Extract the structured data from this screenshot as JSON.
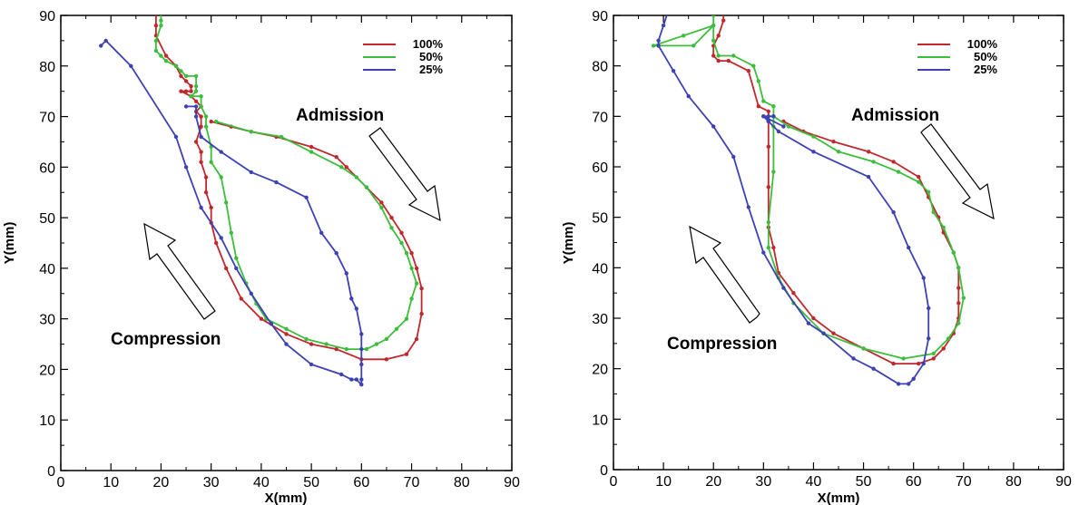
{
  "chart_data": [
    {
      "type": "line",
      "xlabel": "X(mm)",
      "ylabel": "Y(mm)",
      "xlim": [
        0,
        90
      ],
      "ylim": [
        0,
        90
      ],
      "xticks": [
        0,
        10,
        20,
        30,
        40,
        50,
        60,
        70,
        80,
        90
      ],
      "yticks": [
        0,
        10,
        20,
        30,
        40,
        50,
        60,
        70,
        80,
        90
      ],
      "grid": false,
      "legend_position": "top-right",
      "annotations": [
        {
          "text": "Admission",
          "arrow": "down-right"
        },
        {
          "text": "Compression",
          "arrow": "up-left"
        }
      ],
      "series": [
        {
          "name": "100%",
          "color": "#c0282d",
          "points": [
            [
              19,
              91
            ],
            [
              19,
              88
            ],
            [
              19,
              86
            ],
            [
              21,
              82
            ],
            [
              23,
              80
            ],
            [
              24,
              78
            ],
            [
              25,
              77
            ],
            [
              26,
              76
            ],
            [
              26,
              75
            ],
            [
              25,
              75
            ],
            [
              24,
              75
            ],
            [
              26,
              74
            ],
            [
              27,
              73
            ],
            [
              28,
              72
            ],
            [
              27,
              71
            ],
            [
              28,
              70
            ],
            [
              28,
              68
            ],
            [
              27,
              65
            ],
            [
              28,
              63
            ],
            [
              28,
              61
            ],
            [
              29,
              58
            ],
            [
              29,
              55
            ],
            [
              30,
              52
            ],
            [
              30,
              49
            ],
            [
              31,
              45
            ],
            [
              33,
              40
            ],
            [
              36,
              34
            ],
            [
              40,
              30
            ],
            [
              45,
              27
            ],
            [
              50,
              25
            ],
            [
              55,
              24
            ],
            [
              60,
              22
            ],
            [
              65,
              22
            ],
            [
              69,
              23
            ],
            [
              71,
              26
            ],
            [
              72,
              31
            ],
            [
              72,
              36
            ],
            [
              71,
              40
            ],
            [
              70,
              43
            ],
            [
              68,
              47
            ],
            [
              66,
              50
            ],
            [
              64,
              53
            ],
            [
              61,
              56
            ],
            [
              57,
              60
            ],
            [
              55,
              62
            ],
            [
              50,
              64
            ],
            [
              43,
              66
            ],
            [
              38,
              67
            ],
            [
              34,
              68
            ],
            [
              30,
              69
            ]
          ]
        },
        {
          "name": "50%",
          "color": "#3cbe3c",
          "points": [
            [
              20,
              91
            ],
            [
              20,
              89
            ],
            [
              20,
              88
            ],
            [
              19,
              85
            ],
            [
              19,
              83
            ],
            [
              20,
              82
            ],
            [
              21,
              81
            ],
            [
              23,
              80
            ],
            [
              24,
              79
            ],
            [
              25,
              78
            ],
            [
              27,
              78
            ],
            [
              27,
              76
            ],
            [
              27,
              75
            ],
            [
              26,
              74
            ],
            [
              28,
              74
            ],
            [
              28,
              72
            ],
            [
              29,
              70
            ],
            [
              29,
              68
            ],
            [
              30,
              64
            ],
            [
              30,
              61
            ],
            [
              32,
              58
            ],
            [
              33,
              53
            ],
            [
              34,
              47
            ],
            [
              35,
              42
            ],
            [
              37,
              37
            ],
            [
              39,
              33
            ],
            [
              41,
              30
            ],
            [
              45,
              28
            ],
            [
              49,
              26
            ],
            [
              53,
              25
            ],
            [
              57,
              24
            ],
            [
              61,
              24
            ],
            [
              63,
              25
            ],
            [
              65,
              26
            ],
            [
              67,
              28
            ],
            [
              69,
              30
            ],
            [
              70,
              34
            ],
            [
              71,
              37
            ],
            [
              70,
              40
            ],
            [
              69,
              43
            ],
            [
              68,
              45
            ],
            [
              66,
              48
            ],
            [
              64,
              52
            ],
            [
              61,
              56
            ],
            [
              59,
              58
            ],
            [
              56,
              60
            ],
            [
              50,
              63
            ],
            [
              44,
              66
            ],
            [
              38,
              67
            ],
            [
              31,
              69
            ]
          ]
        },
        {
          "name": "25%",
          "color": "#3c41b4",
          "points": [
            [
              8,
              84
            ],
            [
              9,
              85
            ],
            [
              14,
              80
            ],
            [
              23,
              66
            ],
            [
              25,
              60
            ],
            [
              28,
              52
            ],
            [
              32,
              46
            ],
            [
              35,
              40
            ],
            [
              38,
              35
            ],
            [
              42,
              29
            ],
            [
              45,
              25
            ],
            [
              50,
              21
            ],
            [
              56,
              19
            ],
            [
              58,
              18
            ],
            [
              59,
              18
            ],
            [
              60,
              17
            ],
            [
              60,
              18
            ],
            [
              60,
              21
            ],
            [
              60,
              24
            ],
            [
              60,
              27
            ],
            [
              59,
              32
            ],
            [
              58,
              34
            ],
            [
              57,
              39
            ],
            [
              55,
              43
            ],
            [
              52,
              47
            ],
            [
              49,
              54
            ],
            [
              43,
              57
            ],
            [
              38,
              59
            ],
            [
              32,
              63
            ],
            [
              28,
              66
            ],
            [
              27,
              70
            ],
            [
              27,
              72
            ],
            [
              25,
              72
            ]
          ]
        }
      ]
    },
    {
      "type": "line",
      "xlabel": "X(mm)",
      "ylabel": "Y(mm)",
      "xlim": [
        0,
        90
      ],
      "ylim": [
        0,
        90
      ],
      "xticks": [
        0,
        10,
        20,
        30,
        40,
        50,
        60,
        70,
        80,
        90
      ],
      "yticks": [
        0,
        10,
        20,
        30,
        40,
        50,
        60,
        70,
        80,
        90
      ],
      "grid": false,
      "legend_position": "top-right",
      "annotations": [
        {
          "text": "Admission",
          "arrow": "down-right"
        },
        {
          "text": "Compression",
          "arrow": "up-left"
        }
      ],
      "series": [
        {
          "name": "100%",
          "color": "#c0282d",
          "points": [
            [
              22,
              91
            ],
            [
              22,
              89
            ],
            [
              21,
              86
            ],
            [
              20,
              84
            ],
            [
              20,
              82
            ],
            [
              21,
              81
            ],
            [
              23,
              81
            ],
            [
              27,
              79
            ],
            [
              29,
              72
            ],
            [
              31,
              71
            ],
            [
              31,
              69
            ],
            [
              31,
              64
            ],
            [
              31,
              56
            ],
            [
              31,
              48
            ],
            [
              32,
              44
            ],
            [
              33,
              39
            ],
            [
              36,
              35
            ],
            [
              40,
              30
            ],
            [
              44,
              27
            ],
            [
              50,
              24
            ],
            [
              56,
              21
            ],
            [
              61,
              21
            ],
            [
              64,
              22
            ],
            [
              66,
              24
            ],
            [
              68,
              27
            ],
            [
              69,
              30
            ],
            [
              69,
              33
            ],
            [
              69,
              36
            ],
            [
              69,
              40
            ],
            [
              68,
              43
            ],
            [
              66,
              47
            ],
            [
              65,
              50
            ],
            [
              63,
              54
            ],
            [
              61,
              58
            ],
            [
              56,
              61
            ],
            [
              51,
              63
            ],
            [
              44,
              65
            ],
            [
              38,
              67
            ],
            [
              34,
              69
            ]
          ]
        },
        {
          "name": "50%",
          "color": "#3cbe3c",
          "points": [
            [
              20,
              92
            ],
            [
              20,
              90
            ],
            [
              20,
              88
            ],
            [
              16,
              84
            ],
            [
              9,
              84
            ],
            [
              8,
              84
            ],
            [
              14,
              86
            ],
            [
              20,
              88
            ],
            [
              20,
              85
            ],
            [
              21,
              82
            ],
            [
              24,
              82
            ],
            [
              28,
              80
            ],
            [
              29,
              77
            ],
            [
              30,
              73
            ],
            [
              32,
              72
            ],
            [
              32,
              70
            ],
            [
              32,
              68
            ],
            [
              32,
              59
            ],
            [
              31,
              49
            ],
            [
              31,
              44
            ],
            [
              33,
              38
            ],
            [
              36,
              33
            ],
            [
              42,
              27
            ],
            [
              50,
              24
            ],
            [
              58,
              22
            ],
            [
              64,
              23
            ],
            [
              67,
              26
            ],
            [
              69,
              29
            ],
            [
              70,
              34
            ],
            [
              69,
              40
            ],
            [
              68,
              43
            ],
            [
              66,
              48
            ],
            [
              64,
              51
            ],
            [
              63,
              55
            ],
            [
              61,
              57
            ],
            [
              57,
              59
            ],
            [
              52,
              61
            ],
            [
              45,
              63
            ],
            [
              40,
              66
            ],
            [
              35,
              68
            ],
            [
              32,
              70
            ]
          ]
        },
        {
          "name": "25%",
          "color": "#3c41b4",
          "points": [
            [
              12,
              94
            ],
            [
              10,
              88
            ],
            [
              9,
              85
            ],
            [
              9,
              84
            ],
            [
              12,
              79
            ],
            [
              15,
              74
            ],
            [
              20,
              68
            ],
            [
              24,
              62
            ],
            [
              27,
              52
            ],
            [
              30,
              43
            ],
            [
              34,
              36
            ],
            [
              39,
              29
            ],
            [
              42,
              27
            ],
            [
              48,
              22
            ],
            [
              52,
              20
            ],
            [
              57,
              17
            ],
            [
              59,
              17
            ],
            [
              60,
              18
            ],
            [
              62,
              21
            ],
            [
              63,
              26
            ],
            [
              63,
              32
            ],
            [
              62,
              38
            ],
            [
              59,
              44
            ],
            [
              56,
              51
            ],
            [
              51,
              58
            ],
            [
              40,
              63
            ],
            [
              33,
              67
            ],
            [
              31,
              69
            ],
            [
              30,
              70
            ],
            [
              32,
              70
            ],
            [
              31,
              70
            ],
            [
              30,
              70
            ],
            [
              34,
              68
            ]
          ]
        }
      ]
    }
  ]
}
